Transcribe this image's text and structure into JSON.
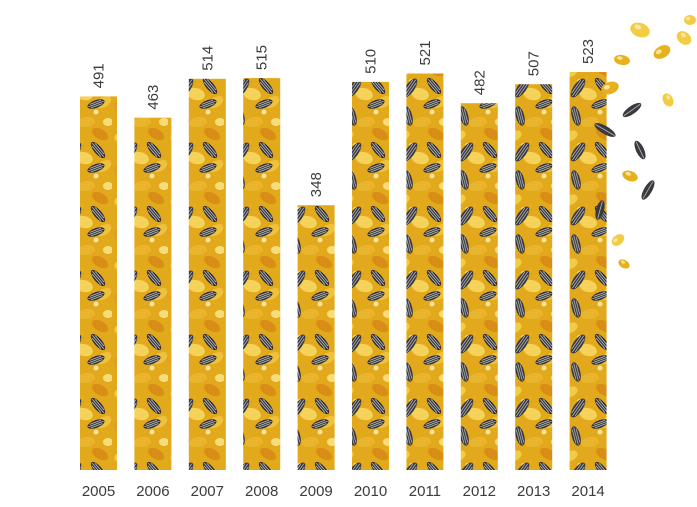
{
  "chart_data": {
    "type": "bar",
    "title": "",
    "xlabel": "",
    "ylabel": "",
    "categories": [
      "2005",
      "2006",
      "2007",
      "2008",
      "2009",
      "2010",
      "2011",
      "2012",
      "2013",
      "2014"
    ],
    "values": [
      491,
      463,
      514,
      515,
      348,
      510,
      521,
      482,
      507,
      523
    ],
    "value_labels": [
      "491",
      "463",
      "514",
      "515",
      "348",
      "510",
      "521",
      "482",
      "507",
      "523"
    ],
    "ylim": [
      0,
      523
    ],
    "grid": false,
    "legend": "none",
    "fill": "sunflower-seed-texture",
    "colors": {
      "seed_yellow": "#E6B11C",
      "seed_yellow_light": "#F2CC45",
      "seed_orange": "#D98E16",
      "seed_shell_dark": "#3A3A3E",
      "seed_stripe_light": "#B9BAC0",
      "label_text": "#3C3C3C"
    }
  }
}
